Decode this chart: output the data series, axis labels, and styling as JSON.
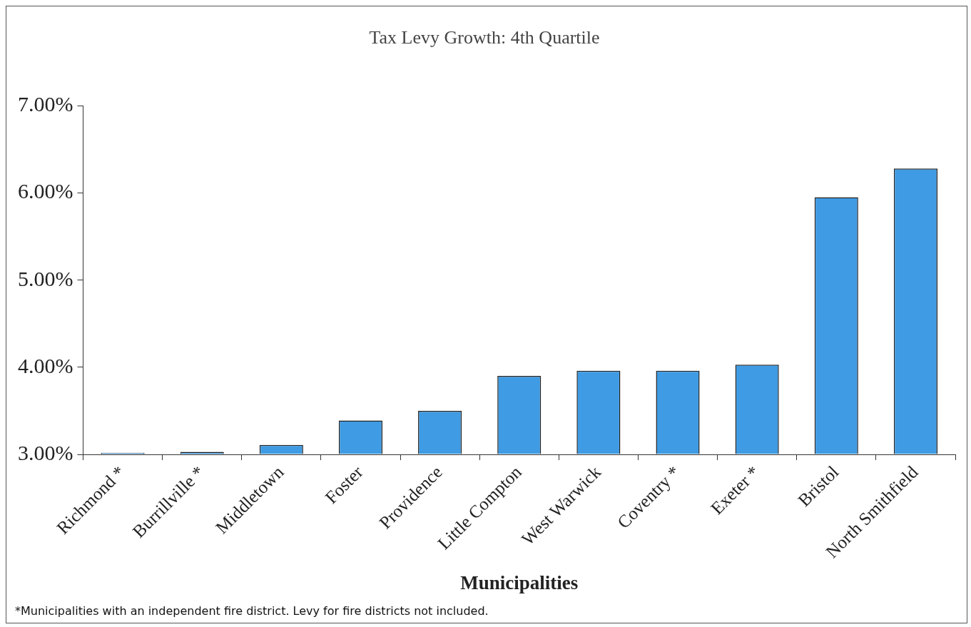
{
  "chart_data": {
    "type": "bar",
    "title": "Tax Levy Growth: 4th Quartile",
    "xlabel": "Municipalities",
    "categories": [
      "Richmond *",
      "Burrillville *",
      "Middletown",
      "Foster",
      "Providence",
      "Little Compton",
      "West Warwick",
      "Coventry *",
      "Exeter *",
      "Bristol",
      "North Smithfield"
    ],
    "values": [
      3.02,
      3.03,
      3.11,
      3.39,
      3.5,
      3.9,
      3.96,
      3.96,
      4.03,
      5.95,
      6.28
    ],
    "color": "#3f9be3",
    "ylim": [
      3,
      7
    ],
    "yticks": [
      {
        "value": 3,
        "label": "3.00%"
      },
      {
        "value": 4,
        "label": "4.00%"
      },
      {
        "value": 5,
        "label": "5.00%"
      },
      {
        "value": 6,
        "label": "6.00%"
      },
      {
        "value": 7,
        "label": "7.00%"
      }
    ],
    "grid": false,
    "legend": false,
    "annotations": [
      "*Municipalities with an independent fire district. Levy for fire districts not included."
    ]
  }
}
